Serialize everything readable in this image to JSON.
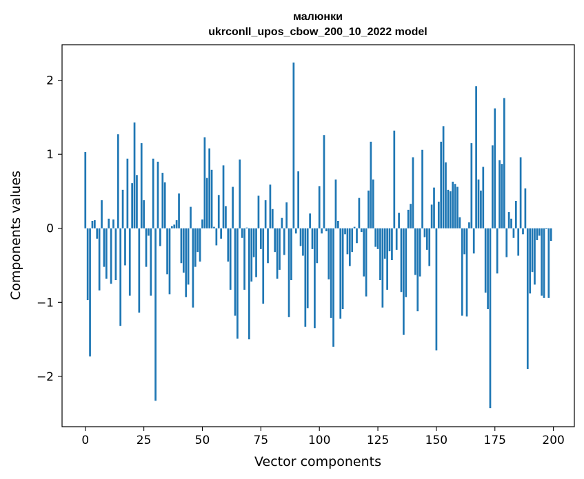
{
  "chart_data": {
    "type": "bar",
    "title": "малюнки",
    "subtitle": "ukrconll_upos_cbow_200_10_2022 model",
    "xlabel": "Vector components",
    "ylabel": "Components values",
    "xlim": [
      -9.95,
      208.95
    ],
    "ylim": [
      -2.68,
      2.48
    ],
    "xticks": [
      0,
      25,
      50,
      75,
      100,
      125,
      150,
      175,
      200
    ],
    "xtick_labels": [
      "0",
      "25",
      "50",
      "75",
      "100",
      "125",
      "150",
      "175",
      "200"
    ],
    "yticks": [
      -2,
      -1,
      0,
      1,
      2
    ],
    "ytick_labels": [
      "−2",
      "−1",
      "0",
      "1",
      "2"
    ],
    "grid": false,
    "bar_color": "#1f77b4",
    "x": [
      0,
      1,
      2,
      3,
      4,
      5,
      6,
      7,
      8,
      9,
      10,
      11,
      12,
      13,
      14,
      15,
      16,
      17,
      18,
      19,
      20,
      21,
      22,
      23,
      24,
      25,
      26,
      27,
      28,
      29,
      30,
      31,
      32,
      33,
      34,
      35,
      36,
      37,
      38,
      39,
      40,
      41,
      42,
      43,
      44,
      45,
      46,
      47,
      48,
      49,
      50,
      51,
      52,
      53,
      54,
      55,
      56,
      57,
      58,
      59,
      60,
      61,
      62,
      63,
      64,
      65,
      66,
      67,
      68,
      69,
      70,
      71,
      72,
      73,
      74,
      75,
      76,
      77,
      78,
      79,
      80,
      81,
      82,
      83,
      84,
      85,
      86,
      87,
      88,
      89,
      90,
      91,
      92,
      93,
      94,
      95,
      96,
      97,
      98,
      99,
      100,
      101,
      102,
      103,
      104,
      105,
      106,
      107,
      108,
      109,
      110,
      111,
      112,
      113,
      114,
      115,
      116,
      117,
      118,
      119,
      120,
      121,
      122,
      123,
      124,
      125,
      126,
      127,
      128,
      129,
      130,
      131,
      132,
      133,
      134,
      135,
      136,
      137,
      138,
      139,
      140,
      141,
      142,
      143,
      144,
      145,
      146,
      147,
      148,
      149,
      150,
      151,
      152,
      153,
      154,
      155,
      156,
      157,
      158,
      159,
      160,
      161,
      162,
      163,
      164,
      165,
      166,
      167,
      168,
      169,
      170,
      171,
      172,
      173,
      174,
      175,
      176,
      177,
      178,
      179,
      180,
      181,
      182,
      183,
      184,
      185,
      186,
      187,
      188,
      189,
      190,
      191,
      192,
      193,
      194,
      195,
      196,
      197,
      198,
      199
    ],
    "values": [
      1.03,
      -0.97,
      -1.73,
      0.1,
      0.11,
      -0.14,
      -0.84,
      0.38,
      -0.52,
      -0.68,
      0.13,
      -0.75,
      0.12,
      -0.7,
      1.27,
      -1.32,
      0.52,
      -0.5,
      0.94,
      -0.91,
      0.61,
      1.43,
      0.72,
      -1.14,
      1.15,
      0.38,
      -0.52,
      -0.1,
      -0.91,
      0.94,
      -2.33,
      0.9,
      -0.24,
      0.75,
      0.62,
      -0.62,
      -0.89,
      0.03,
      0.05,
      0.11,
      0.47,
      -0.47,
      -0.6,
      -0.93,
      -0.76,
      0.29,
      -1.07,
      -0.52,
      -0.32,
      -0.45,
      0.12,
      1.23,
      0.68,
      1.08,
      0.79,
      0.02,
      -0.23,
      0.45,
      -0.14,
      0.85,
      0.3,
      -0.45,
      -0.83,
      0.56,
      -1.18,
      -1.49,
      0.93,
      -0.13,
      -0.83,
      0.01,
      -1.5,
      -0.72,
      -0.39,
      -0.66,
      0.44,
      -0.28,
      -1.02,
      0.38,
      -0.47,
      0.59,
      0.26,
      -0.32,
      -0.68,
      -0.56,
      0.14,
      -0.36,
      0.35,
      -1.2,
      -0.7,
      2.24,
      -0.07,
      0.77,
      -0.24,
      -0.37,
      -1.33,
      -1.08,
      0.2,
      -0.28,
      -1.35,
      -0.47,
      0.57,
      -0.07,
      1.26,
      -0.04,
      -0.69,
      -1.21,
      -1.6,
      0.66,
      0.1,
      -1.22,
      -1.09,
      -0.08,
      -0.35,
      -0.51,
      -0.32,
      0.02,
      -0.2,
      0.41,
      -0.05,
      -0.65,
      -0.92,
      0.51,
      1.17,
      0.66,
      -0.25,
      -0.28,
      -0.7,
      -1.07,
      -0.41,
      -0.83,
      -0.31,
      -0.43,
      1.32,
      -0.29,
      0.21,
      -0.86,
      -1.44,
      -0.93,
      0.25,
      0.33,
      0.96,
      -0.63,
      -1.12,
      -0.65,
      1.06,
      -0.12,
      -0.29,
      -0.51,
      0.32,
      0.55,
      -1.65,
      0.36,
      1.17,
      1.38,
      0.89,
      0.52,
      0.5,
      0.63,
      0.6,
      0.56,
      0.15,
      -1.18,
      -0.35,
      -1.19,
      0.08,
      1.15,
      -0.34,
      1.92,
      0.66,
      0.51,
      0.83,
      -0.87,
      -1.09,
      -2.43,
      1.12,
      1.62,
      -0.61,
      0.92,
      0.87,
      1.76,
      -0.39,
      0.22,
      0.13,
      -0.13,
      0.37,
      -0.37,
      0.96,
      -0.08,
      0.54,
      -1.9,
      -0.88,
      -0.59,
      -0.76,
      -0.16,
      -0.1,
      -0.91,
      -0.94,
      -0.01,
      -0.94,
      -0.17
    ]
  }
}
